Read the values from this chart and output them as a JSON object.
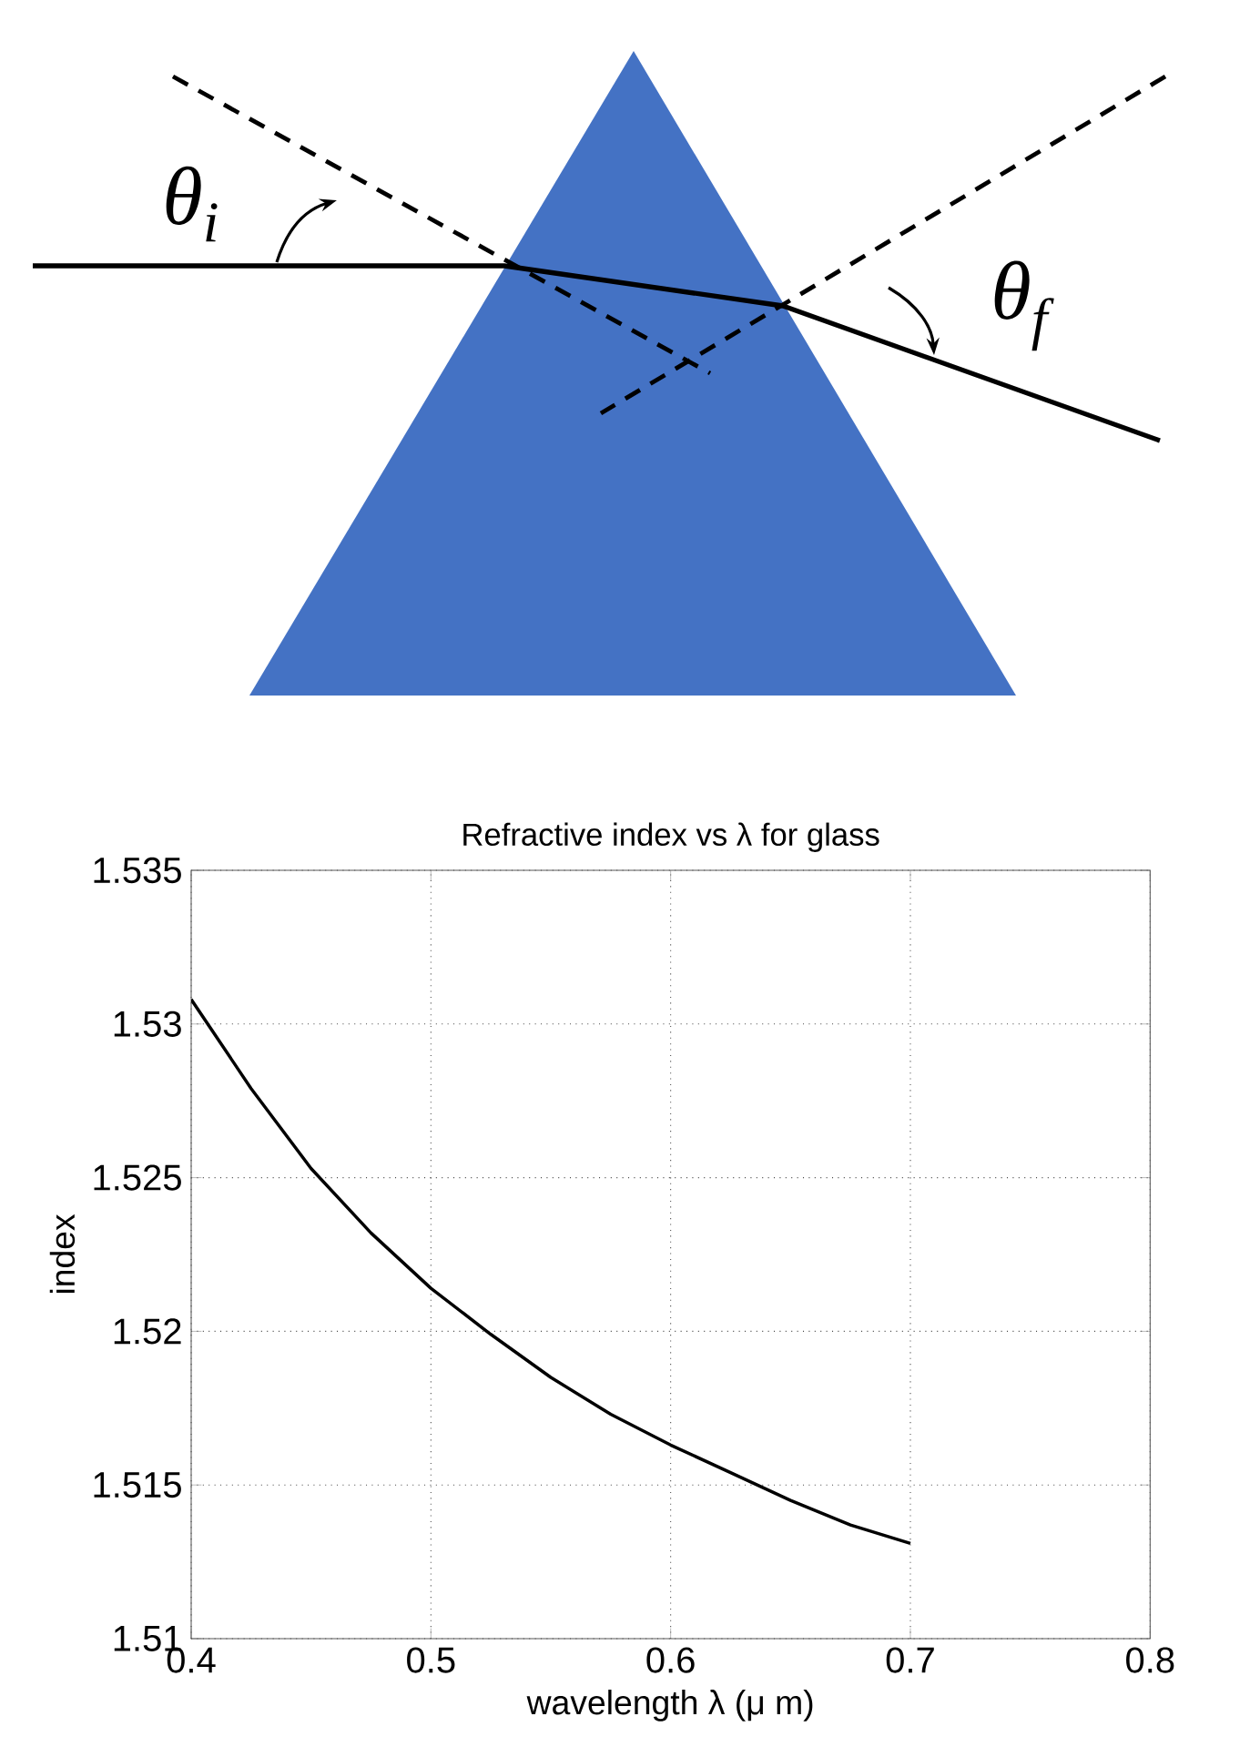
{
  "chart_data": {
    "type": "line",
    "title": "Refractive index vs λ for glass",
    "xlabel": "wavelength  λ (μ m)",
    "ylabel": "index",
    "x": [
      0.4,
      0.425,
      0.45,
      0.475,
      0.5,
      0.525,
      0.55,
      0.575,
      0.6,
      0.625,
      0.65,
      0.675,
      0.7
    ],
    "values": [
      1.5308,
      1.5279,
      1.5253,
      1.5232,
      1.5214,
      1.5199,
      1.5185,
      1.5173,
      1.5163,
      1.5154,
      1.5145,
      1.5137,
      1.5131
    ],
    "color": "#000000",
    "xlim": [
      0.4,
      0.8
    ],
    "ylim": [
      1.51,
      1.535
    ],
    "xticks": [
      0.4,
      0.5,
      0.6,
      0.7,
      0.8
    ],
    "yticks": [
      1.51,
      1.515,
      1.52,
      1.525,
      1.53,
      1.535
    ],
    "grid": true,
    "annotations": [
      "θ$_{i}$",
      "θ$_{f}$"
    ]
  }
}
